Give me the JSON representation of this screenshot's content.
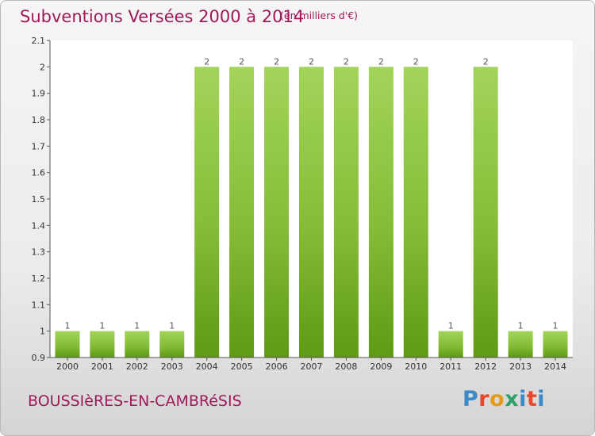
{
  "header": {
    "title": "Subventions Versées 2000 à 2014",
    "subtitle": "(en milliers d'€)"
  },
  "footer": {
    "commune": "BOUSSIèRES-EN-CAMBRéSIS",
    "logo_text": "Proxiti"
  },
  "colors": {
    "title": "#a0195a",
    "bar_light": "#9ccf4f",
    "bar_dark": "#5e9a13",
    "logo": [
      "#3a89c9",
      "#e8472b",
      "#e59c1b",
      "#2da16b",
      "#3a89c9",
      "#e8472b",
      "#3a89c9"
    ]
  },
  "chart_data": {
    "type": "bar",
    "categories": [
      "2000",
      "2001",
      "2002",
      "2003",
      "2004",
      "2005",
      "2006",
      "2007",
      "2008",
      "2009",
      "2010",
      "2011",
      "2012",
      "2013",
      "2014"
    ],
    "values": [
      1,
      1,
      1,
      1,
      2,
      2,
      2,
      2,
      2,
      2,
      2,
      1,
      2,
      1,
      1
    ],
    "data_labels": [
      "1",
      "1",
      "1",
      "1",
      "2",
      "2",
      "2",
      "2",
      "2",
      "2",
      "2",
      "1",
      "2",
      "1",
      "1"
    ],
    "y_ticks": [
      "0.9",
      "1",
      "1.1",
      "1.2",
      "1.3",
      "1.4",
      "1.5",
      "1.6",
      "1.7",
      "1.8",
      "1.9",
      "2",
      "2.1"
    ],
    "ylim": [
      0.9,
      2.1
    ],
    "grid": false,
    "xlabel": "",
    "ylabel": ""
  }
}
